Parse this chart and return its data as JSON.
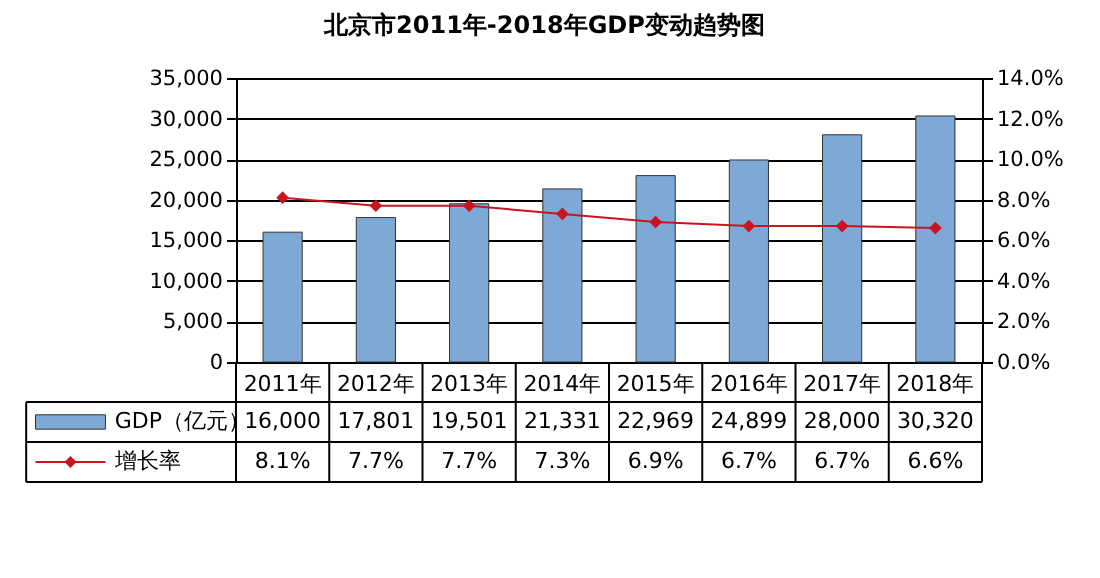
{
  "chart_data": {
    "type": "bar",
    "title": "北京市2011年-2018年GDP变动趋势图",
    "categories": [
      "2011年",
      "2012年",
      "2013年",
      "2014年",
      "2015年",
      "2016年",
      "2017年",
      "2018年"
    ],
    "series": [
      {
        "name": "GDP（亿元）",
        "color": "#7ea9d6",
        "values": [
          16000,
          17801,
          19501,
          21331,
          22969,
          24899,
          28000,
          30320
        ],
        "value_labels": [
          "16,000",
          "17,801",
          "19,501",
          "21,331",
          "22,969",
          "24,899",
          "28,000",
          "30,320"
        ]
      },
      {
        "name": "增长率",
        "type": "line",
        "axis": "y2",
        "color": "#c8141e",
        "marker": "diamond",
        "values": [
          8.1,
          7.7,
          7.7,
          7.3,
          6.9,
          6.7,
          6.7,
          6.6
        ],
        "value_labels": [
          "8.1%",
          "7.7%",
          "7.7%",
          "7.3%",
          "6.9%",
          "6.7%",
          "6.7%",
          "6.6%"
        ]
      }
    ],
    "ylim": [
      0,
      35000
    ],
    "yticks": [
      {
        "value": 0,
        "label": "0"
      },
      {
        "value": 5000,
        "label": "5,000"
      },
      {
        "value": 10000,
        "label": "10,000"
      },
      {
        "value": 15000,
        "label": "15,000"
      },
      {
        "value": 20000,
        "label": "20,000"
      },
      {
        "value": 25000,
        "label": "25,000"
      },
      {
        "value": 30000,
        "label": "30,000"
      },
      {
        "value": 35000,
        "label": "35,000"
      }
    ],
    "y2lim": [
      0,
      14
    ],
    "y2ticks": [
      {
        "value": 0,
        "label": "0.0%"
      },
      {
        "value": 2,
        "label": "2.0%"
      },
      {
        "value": 4,
        "label": "4.0%"
      },
      {
        "value": 6,
        "label": "6.0%"
      },
      {
        "value": 8,
        "label": "8.0%"
      },
      {
        "value": 10,
        "label": "10.0%"
      },
      {
        "value": 12,
        "label": "12.0%"
      },
      {
        "value": 14,
        "label": "14.0%"
      }
    ],
    "grid": "y",
    "legend": "bottom left"
  }
}
